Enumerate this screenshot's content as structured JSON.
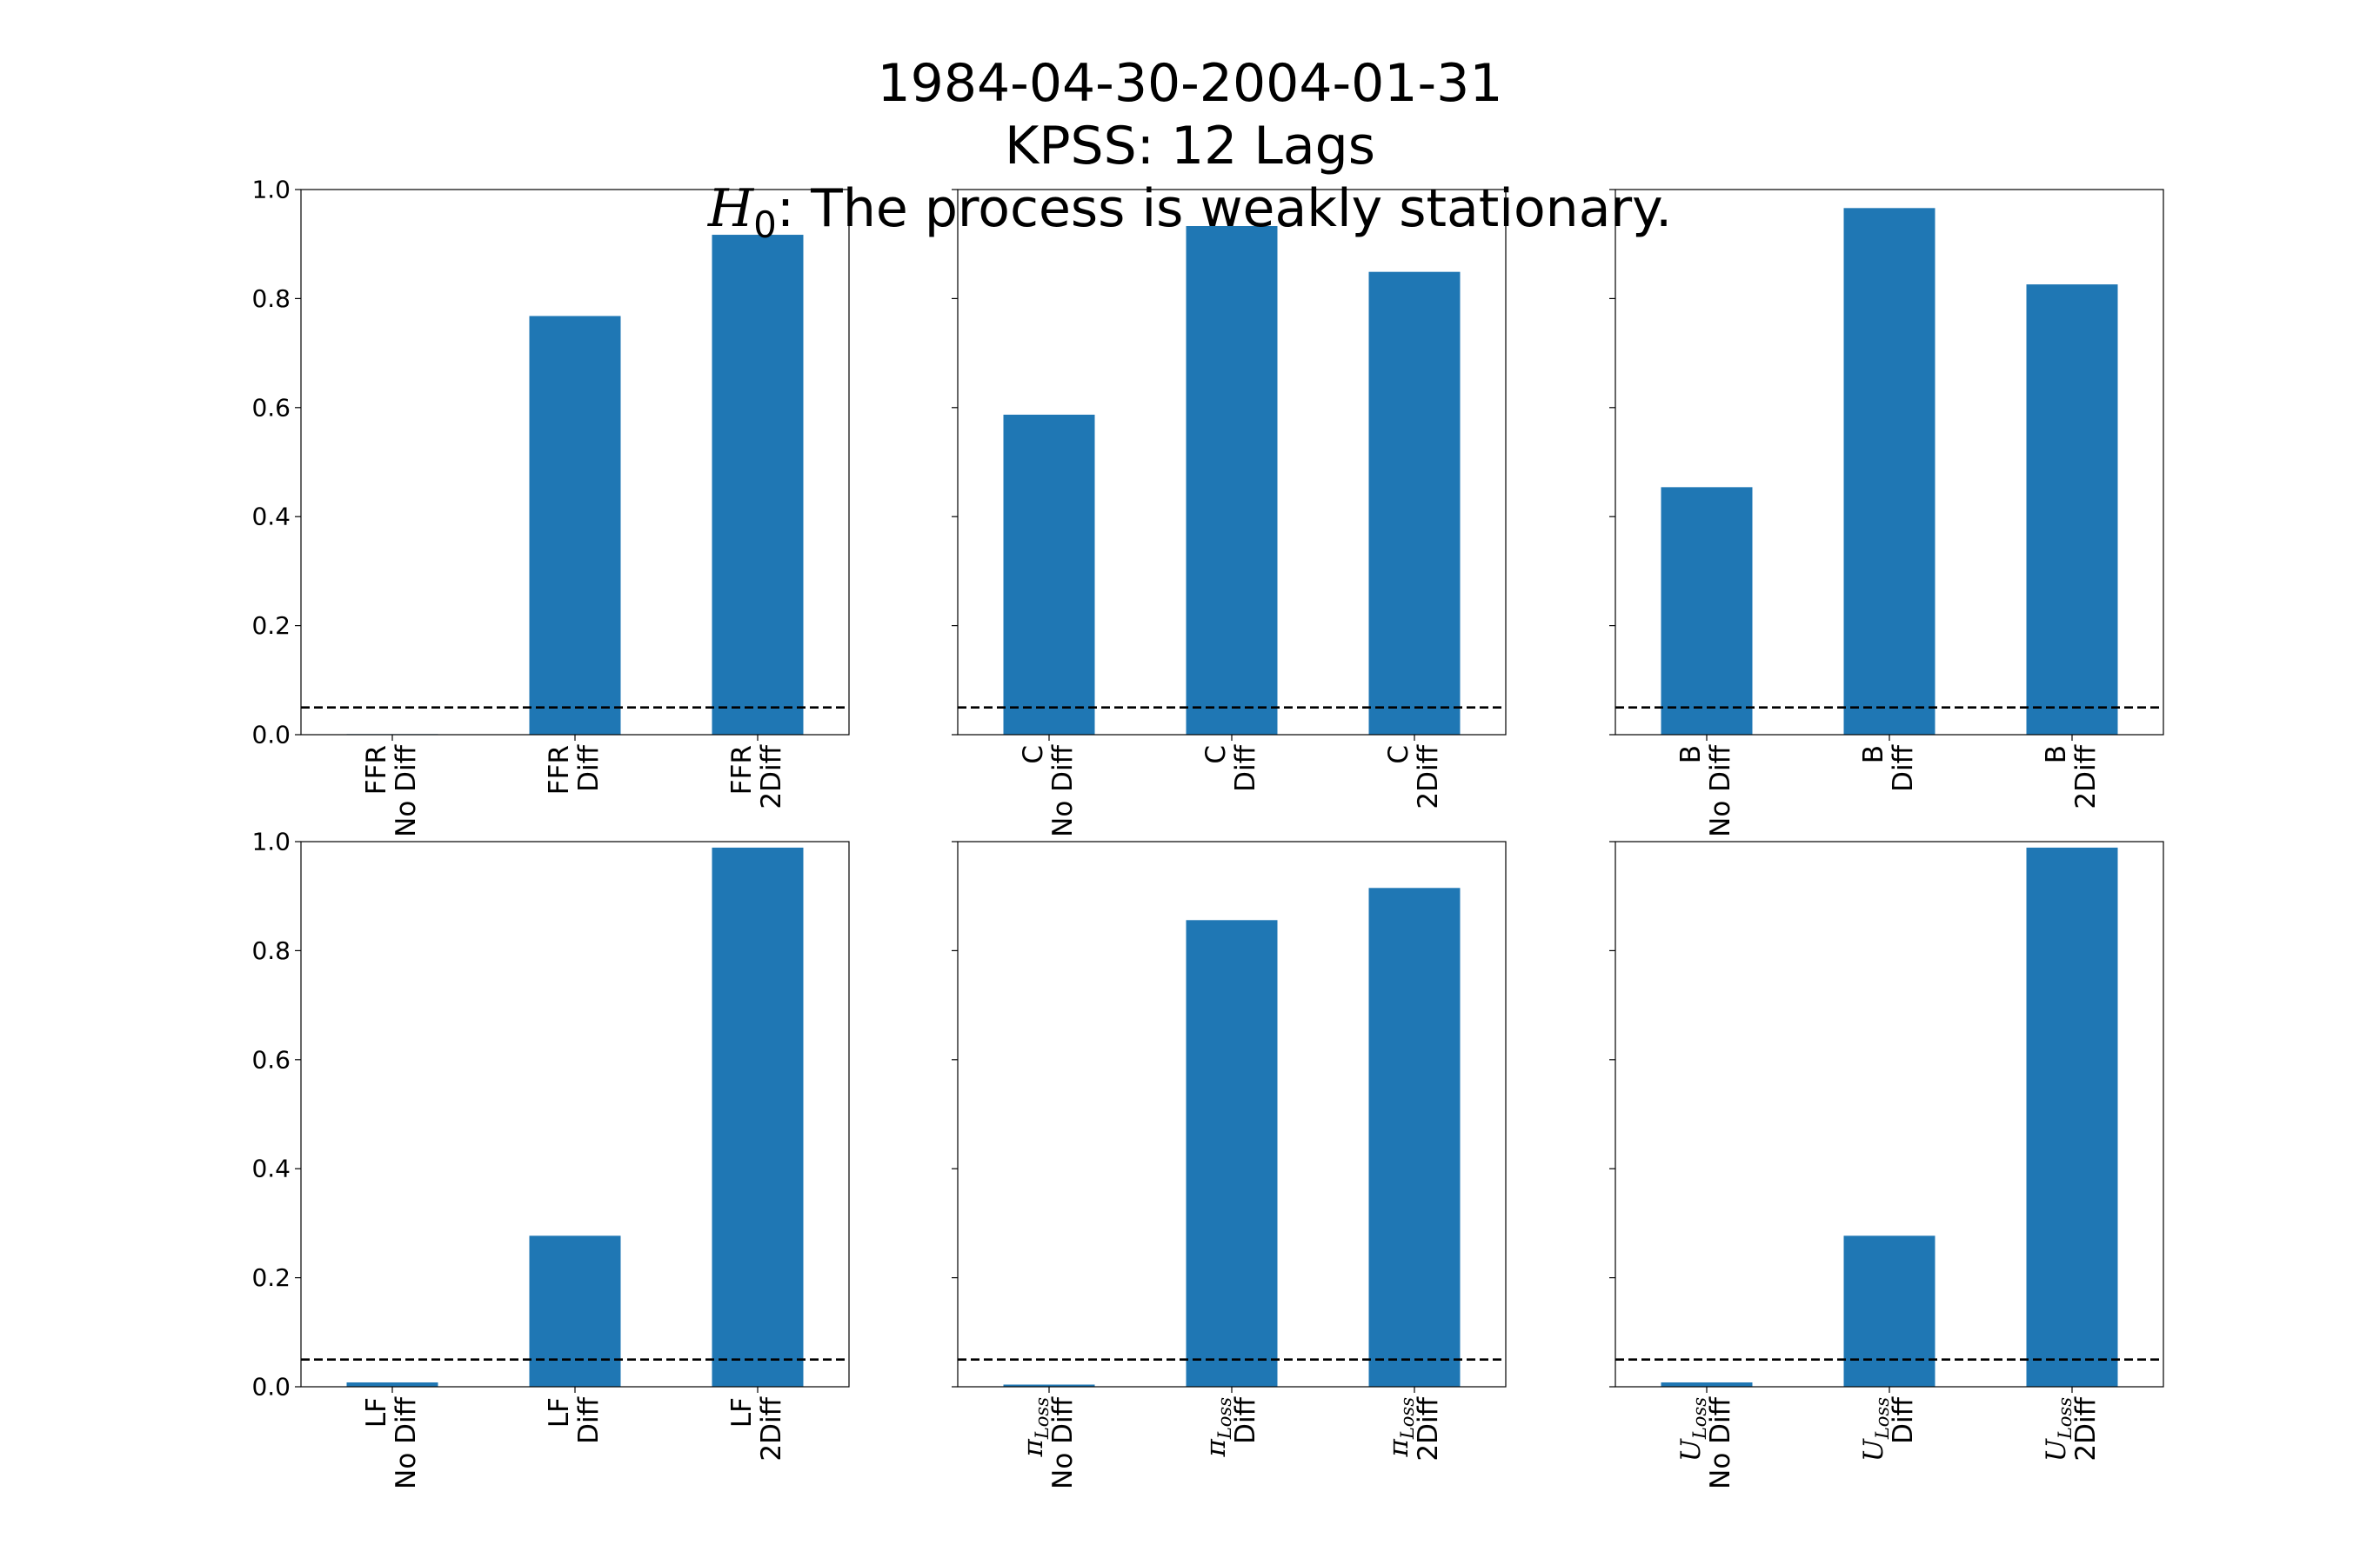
{
  "figure": {
    "title_line1": "1984-04-30-2004-01-31",
    "title_line2": "KPSS: 12 Lags",
    "title_line3_symbol": "H",
    "title_line3_subscript": "0",
    "title_line3_text": ": The process is weakly stationary."
  },
  "chart_data": [
    {
      "type": "bar",
      "categories": [
        {
          "var": "FFR",
          "sub": "",
          "diff": "No Diff"
        },
        {
          "var": "FFR",
          "sub": "",
          "diff": "Diff"
        },
        {
          "var": "FFR",
          "sub": "",
          "diff": "2Diff"
        }
      ],
      "values": [
        0.001,
        0.768,
        0.917
      ],
      "ylim": [
        0,
        1.0
      ],
      "yticks": [
        "0.0",
        "0.2",
        "0.4",
        "0.6",
        "0.8",
        "1.0"
      ],
      "show_yticklabels": true,
      "threshold": 0.05,
      "bar_color": "#1f77b4"
    },
    {
      "type": "bar",
      "categories": [
        {
          "var": "C",
          "sub": "",
          "diff": "No Diff"
        },
        {
          "var": "C",
          "sub": "",
          "diff": "Diff"
        },
        {
          "var": "C",
          "sub": "",
          "diff": "2Diff"
        }
      ],
      "values": [
        0.587,
        0.933,
        0.849
      ],
      "ylim": [
        0,
        1.0
      ],
      "yticks": [
        "0.0",
        "0.2",
        "0.4",
        "0.6",
        "0.8",
        "1.0"
      ],
      "show_yticklabels": false,
      "threshold": 0.05,
      "bar_color": "#1f77b4"
    },
    {
      "type": "bar",
      "categories": [
        {
          "var": "B",
          "sub": "",
          "diff": "No Diff"
        },
        {
          "var": "B",
          "sub": "",
          "diff": "Diff"
        },
        {
          "var": "B",
          "sub": "",
          "diff": "2Diff"
        }
      ],
      "values": [
        0.454,
        0.966,
        0.826
      ],
      "ylim": [
        0,
        1.0
      ],
      "yticks": [
        "0.0",
        "0.2",
        "0.4",
        "0.6",
        "0.8",
        "1.0"
      ],
      "show_yticklabels": false,
      "threshold": 0.05,
      "bar_color": "#1f77b4"
    },
    {
      "type": "bar",
      "categories": [
        {
          "var": "LF",
          "sub": "",
          "diff": "No Diff"
        },
        {
          "var": "LF",
          "sub": "",
          "diff": "Diff"
        },
        {
          "var": "LF",
          "sub": "",
          "diff": "2Diff"
        }
      ],
      "values": [
        0.008,
        0.277,
        0.989
      ],
      "ylim": [
        0,
        1.0
      ],
      "yticks": [
        "0.0",
        "0.2",
        "0.4",
        "0.6",
        "0.8",
        "1.0"
      ],
      "show_yticklabels": true,
      "threshold": 0.05,
      "bar_color": "#1f77b4"
    },
    {
      "type": "bar",
      "categories": [
        {
          "var": "π",
          "sub": "Loss",
          "diff": "No Diff"
        },
        {
          "var": "π",
          "sub": "Loss",
          "diff": "Diff"
        },
        {
          "var": "π",
          "sub": "Loss",
          "diff": "2Diff"
        }
      ],
      "values": [
        0.004,
        0.856,
        0.915
      ],
      "ylim": [
        0,
        1.0
      ],
      "yticks": [
        "0.0",
        "0.2",
        "0.4",
        "0.6",
        "0.8",
        "1.0"
      ],
      "show_yticklabels": false,
      "threshold": 0.05,
      "bar_color": "#1f77b4"
    },
    {
      "type": "bar",
      "categories": [
        {
          "var": "U",
          "sub": "Loss",
          "diff": "No Diff"
        },
        {
          "var": "U",
          "sub": "Loss",
          "diff": "Diff"
        },
        {
          "var": "U",
          "sub": "Loss",
          "diff": "2Diff"
        }
      ],
      "values": [
        0.008,
        0.277,
        0.989
      ],
      "ylim": [
        0,
        1.0
      ],
      "yticks": [
        "0.0",
        "0.2",
        "0.4",
        "0.6",
        "0.8",
        "1.0"
      ],
      "show_yticklabels": false,
      "threshold": 0.05,
      "bar_color": "#1f77b4"
    }
  ]
}
